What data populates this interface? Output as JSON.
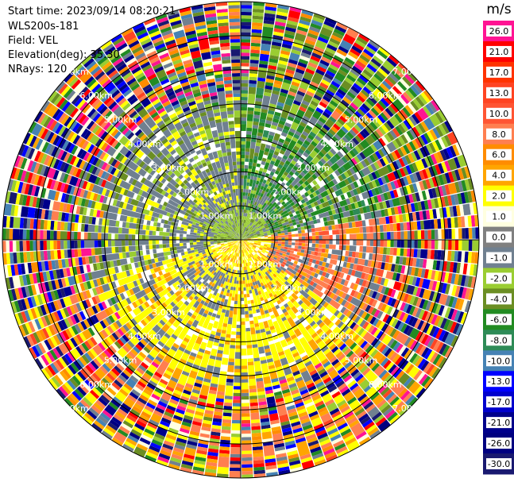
{
  "header": {
    "start_time": "Start time: 2023/09/14 08:20:21",
    "instrument": "WLS200s-181",
    "field": "Field: VEL",
    "elevation": "Elevation(deg): 35.30",
    "nrays": "NRays: 120"
  },
  "chart_data": {
    "type": "heatmap",
    "projection": "polar PPI",
    "field": "VEL",
    "units": "m/s",
    "n_rays": 120,
    "elevation_deg": 35.3,
    "max_range_km": 7.0,
    "range_rings_km": [
      1,
      2,
      3,
      4,
      5,
      6,
      7
    ],
    "range_ring_labels": [
      "1.00km",
      "2.00km",
      "3.00km",
      "4.00km",
      "5.00km",
      "6.00km",
      "7.00km"
    ],
    "colorbar": {
      "label": "m/s",
      "tick_labels": [
        "26.0",
        "21.0",
        "17.0",
        "13.0",
        "10.0",
        "8.0",
        "6.0",
        "4.0",
        "2.0",
        "1.0",
        "0.0",
        "-1.0",
        "-2.0",
        "-4.0",
        "-6.0",
        "-8.0",
        "-10.0",
        "-13.0",
        "-17.0",
        "-21.0",
        "-26.0",
        "-30.0"
      ],
      "colors": [
        "#ff1493",
        "#ff0000",
        "#ff3300",
        "#ff4422",
        "#ff5533",
        "#ff7f50",
        "#ff8c00",
        "#ffa500",
        "#ffff00",
        "#ffffe0",
        "#808080",
        "#708090",
        "#9acd32",
        "#6b8e23",
        "#228b22",
        "#2e8b57",
        "#4682b4",
        "#0000ff",
        "#0000cd",
        "#00008b",
        "#000080",
        "#191970"
      ]
    },
    "sectors_summary": [
      {
        "azimuth_from": 0,
        "azimuth_to": 80,
        "dominant": "negative (green, -2 to -6 m/s)"
      },
      {
        "azimuth_from": 80,
        "azimuth_to": 120,
        "dominant": "positive (salmon/orange, 6 to 10 m/s)"
      },
      {
        "azimuth_from": 120,
        "azimuth_to": 250,
        "dominant": "positive (yellow, 2 to 4 m/s)"
      },
      {
        "azimuth_from": 250,
        "azimuth_to": 360,
        "dominant": "near zero / noise (gray and yellow-green)"
      }
    ],
    "noise_beyond_km": 4.0
  },
  "colors": {
    "ring": "#000000",
    "ring_label": "#ffffff",
    "background": "#ffffff"
  }
}
